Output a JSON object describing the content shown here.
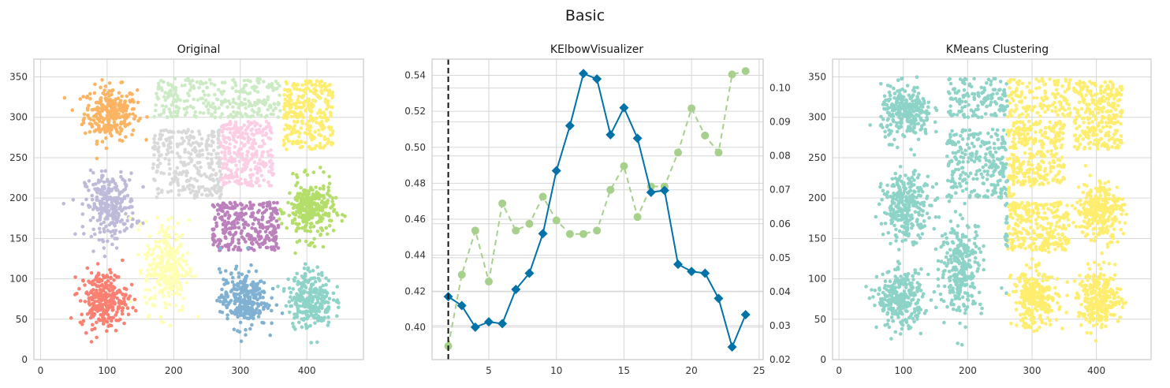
{
  "figure": {
    "title": "Basic"
  },
  "chart_data": [
    {
      "type": "scatter",
      "title": "Original",
      "xlim": [
        -10,
        485
      ],
      "ylim": [
        0,
        372
      ],
      "xticks": [
        0,
        100,
        200,
        300,
        400
      ],
      "yticks": [
        0,
        50,
        100,
        150,
        200,
        250,
        300,
        350
      ],
      "grid": true,
      "clusters": [
        {
          "color": "#fdb462",
          "shape": "blob",
          "center": [
            105,
            305
          ],
          "spread": [
            36,
            30
          ]
        },
        {
          "color": "#ccebc5",
          "shape": "rect",
          "x": [
            170,
            360
          ],
          "y": [
            300,
            348
          ]
        },
        {
          "color": "#ffed6f",
          "shape": "rect",
          "x": [
            365,
            440
          ],
          "y": [
            260,
            345
          ]
        },
        {
          "color": "#d9d9d9",
          "shape": "rect",
          "x": [
            168,
            272
          ],
          "y": [
            200,
            285
          ]
        },
        {
          "color": "#fccde5",
          "shape": "rect",
          "x": [
            270,
            350
          ],
          "y": [
            215,
            295
          ]
        },
        {
          "color": "#bebada",
          "shape": "blob",
          "center": [
            105,
            190
          ],
          "spread": [
            34,
            36
          ]
        },
        {
          "color": "#b3de69",
          "shape": "blob",
          "center": [
            405,
            185
          ],
          "spread": [
            32,
            33
          ]
        },
        {
          "color": "#bc80bd",
          "shape": "rect",
          "x": [
            258,
            358
          ],
          "y": [
            135,
            195
          ]
        },
        {
          "color": "#ffffb3",
          "shape": "blob",
          "center": [
            190,
            115
          ],
          "spread": [
            30,
            52
          ]
        },
        {
          "color": "#fb8072",
          "shape": "blob",
          "center": [
            95,
            75
          ],
          "spread": [
            32,
            32
          ]
        },
        {
          "color": "#80b1d3",
          "shape": "blob",
          "center": [
            305,
            75
          ],
          "spread": [
            32,
            32
          ]
        },
        {
          "color": "#8dd3c7",
          "shape": "blob",
          "center": [
            405,
            75
          ],
          "spread": [
            30,
            32
          ]
        }
      ]
    },
    {
      "type": "line",
      "title": "KElbowVisualizer",
      "xlim": [
        0.8,
        25.3
      ],
      "ylim": [
        0.382,
        0.549
      ],
      "y2lim": [
        0.02,
        0.1085
      ],
      "xticks": [
        5,
        10,
        15,
        20,
        25
      ],
      "yticks": [
        0.4,
        0.42,
        0.44,
        0.46,
        0.48,
        0.5,
        0.52,
        0.54
      ],
      "y2ticks": [
        0.02,
        0.03,
        0.04,
        0.05,
        0.06,
        0.07,
        0.08,
        0.09,
        0.1
      ],
      "y2ticklabels": [
        "0.02",
        "0.03",
        "0.04",
        "0.05",
        "0.06",
        "0.07",
        "0.08",
        "0.09",
        "0.10"
      ],
      "grid": true,
      "elbow_x": 2,
      "x": [
        2,
        3,
        4,
        5,
        6,
        7,
        8,
        9,
        10,
        11,
        12,
        13,
        14,
        15,
        16,
        17,
        18,
        19,
        20,
        21,
        22,
        23,
        24
      ],
      "series": [
        {
          "color": "#0072a8",
          "marker": "diamond",
          "dashed": false,
          "axis": "left",
          "values": [
            0.417,
            0.412,
            0.4,
            0.403,
            0.402,
            0.421,
            0.43,
            0.452,
            0.487,
            0.512,
            0.541,
            0.538,
            0.507,
            0.522,
            0.505,
            0.475,
            0.476,
            0.435,
            0.431,
            0.43,
            0.416,
            0.389,
            0.407
          ]
        },
        {
          "color": "#a8d08d",
          "marker": "circle",
          "dashed": true,
          "axis": "right",
          "values": [
            0.024,
            0.045,
            0.058,
            0.043,
            0.066,
            0.058,
            0.06,
            0.068,
            0.061,
            0.057,
            0.057,
            0.058,
            0.07,
            0.077,
            0.062,
            0.071,
            0.071,
            0.081,
            0.094,
            0.086,
            0.081,
            0.104,
            0.105
          ]
        }
      ]
    },
    {
      "type": "scatter",
      "title": "KMeans Clustering",
      "xlim": [
        -10,
        485
      ],
      "ylim": [
        0,
        372
      ],
      "xticks": [
        0,
        100,
        200,
        300,
        400
      ],
      "yticks": [
        0,
        50,
        100,
        150,
        200,
        250,
        300,
        350
      ],
      "grid": true,
      "split_x": 262,
      "colors": [
        "#8dd3c7",
        "#ffed6f"
      ],
      "clusters": [
        {
          "shape": "blob",
          "center": [
            105,
            305
          ],
          "spread": [
            36,
            30
          ]
        },
        {
          "shape": "rect",
          "x": [
            170,
            360
          ],
          "y": [
            300,
            348
          ]
        },
        {
          "shape": "rect",
          "x": [
            365,
            440
          ],
          "y": [
            260,
            345
          ]
        },
        {
          "shape": "rect",
          "x": [
            168,
            272
          ],
          "y": [
            200,
            285
          ]
        },
        {
          "shape": "rect",
          "x": [
            270,
            350
          ],
          "y": [
            215,
            295
          ]
        },
        {
          "shape": "blob",
          "center": [
            105,
            190
          ],
          "spread": [
            34,
            36
          ]
        },
        {
          "shape": "blob",
          "center": [
            405,
            185
          ],
          "spread": [
            32,
            33
          ]
        },
        {
          "shape": "rect",
          "x": [
            258,
            358
          ],
          "y": [
            135,
            195
          ]
        },
        {
          "shape": "blob",
          "center": [
            190,
            115
          ],
          "spread": [
            30,
            52
          ]
        },
        {
          "shape": "blob",
          "center": [
            95,
            75
          ],
          "spread": [
            32,
            32
          ]
        },
        {
          "shape": "blob",
          "center": [
            305,
            75
          ],
          "spread": [
            32,
            32
          ]
        },
        {
          "shape": "blob",
          "center": [
            405,
            75
          ],
          "spread": [
            30,
            32
          ]
        }
      ]
    }
  ]
}
